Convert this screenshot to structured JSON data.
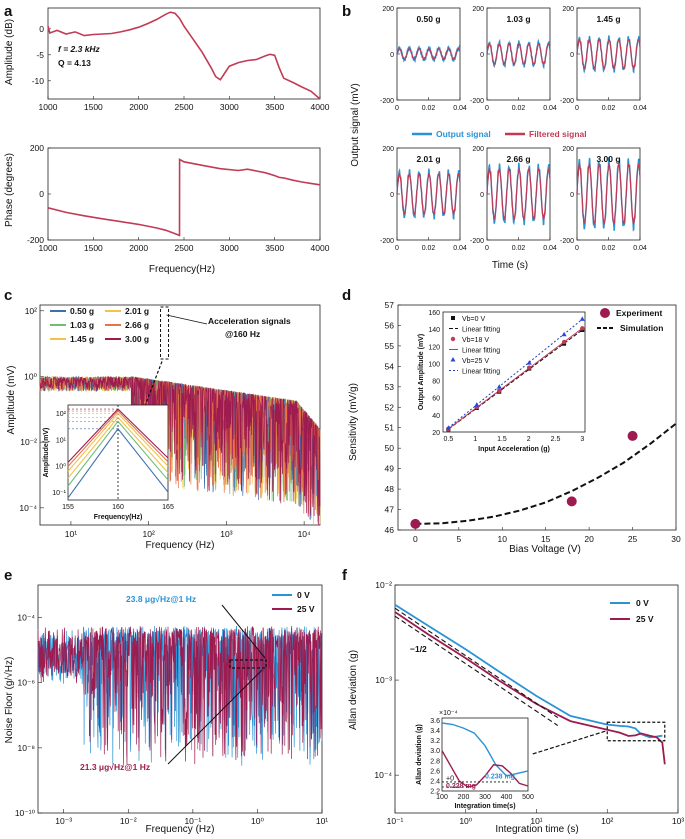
{
  "colors": {
    "red": "#c23b55",
    "blue": "#2a93d5",
    "darkred": "#9e1b4f",
    "green": "#6fbf73",
    "yellow": "#f2c14e",
    "orange": "#e8734a",
    "steel": "#3f6fb0",
    "black": "#111111",
    "blue_fit": "#1f3fbf",
    "tri_blue": "#2b47e0"
  },
  "panel_a": {
    "label": "a",
    "annotation_f": "f = 2.3 kHz",
    "annotation_q": "Q = 4.13",
    "chart_data": [
      {
        "type": "line",
        "ylabel": "Amplitude (dB)",
        "xlim": [
          1000,
          4000
        ],
        "ylim": [
          -13.5,
          4
        ],
        "xticks": [
          "1000",
          "1500",
          "2000",
          "2500",
          "3000",
          "3500",
          "4000"
        ],
        "yticks": [
          "0",
          "-5",
          "-10"
        ],
        "x": [
          1000,
          1020,
          1100,
          1200,
          1300,
          1400,
          1500,
          1600,
          1700,
          1800,
          1900,
          2000,
          2100,
          2200,
          2300,
          2350,
          2400,
          2450,
          2500,
          2600,
          2700,
          2800,
          2850,
          2900,
          2950,
          3000,
          3100,
          3200,
          3300,
          3400,
          3450,
          3500,
          3550,
          3600,
          3700,
          3800,
          3900,
          4000
        ],
        "y": [
          0.5,
          -0.8,
          -0.3,
          -1.0,
          -0.6,
          -1.3,
          -1.1,
          -1.0,
          -0.9,
          -0.6,
          -0.2,
          0.3,
          1.0,
          1.8,
          2.8,
          3.2,
          3.0,
          2.0,
          0.5,
          -2.0,
          -4.5,
          -7.5,
          -9.2,
          -9.8,
          -8.5,
          -7.2,
          -6.5,
          -6.1,
          -5.9,
          -5.2,
          -4.9,
          -5.1,
          -7.5,
          -9.5,
          -10.3,
          -11.2,
          -12.0,
          -13.5
        ]
      },
      {
        "type": "line",
        "xlabel": "Frequency(Hz)",
        "ylabel": "Phase (degrees)",
        "xlim": [
          1000,
          4000
        ],
        "ylim": [
          -200,
          200
        ],
        "xticks": [
          "1000",
          "1500",
          "2000",
          "2500",
          "3000",
          "3500",
          "4000"
        ],
        "yticks": [
          "200",
          "0",
          "-200"
        ],
        "x": [
          1000,
          1200,
          1400,
          1600,
          1800,
          2000,
          2200,
          2300,
          2400,
          2450,
          2451,
          2500,
          2700,
          2900,
          3100,
          3200,
          3300,
          3400,
          3500,
          3550,
          3600,
          3700,
          3800,
          3900,
          4000
        ],
        "y": [
          -60,
          -80,
          -95,
          -108,
          -120,
          -132,
          -148,
          -158,
          -172,
          -180,
          150,
          140,
          125,
          110,
          102,
          108,
          100,
          92,
          80,
          72,
          70,
          60,
          52,
          46,
          40
        ]
      }
    ]
  },
  "panel_b": {
    "label": "b",
    "ylabel": "Output signal (mV)",
    "xlabel": "Time (s)",
    "legend": [
      "Output signal",
      "Filtered signal"
    ],
    "chart_data": {
      "type": "line",
      "xlim": [
        0,
        0.04
      ],
      "ylim": [
        -200,
        200
      ],
      "xticks": [
        "0",
        "0.02",
        "0.04"
      ],
      "yticks": [
        "200",
        "0",
        "-200"
      ],
      "frequency_hz": 160,
      "panels": [
        {
          "title": "0.50 g",
          "amplitude": 25
        },
        {
          "title": "1.03 g",
          "amplitude": 48
        },
        {
          "title": "1.45 g",
          "amplitude": 68
        },
        {
          "title": "2.01 g",
          "amplitude": 95
        },
        {
          "title": "2.66 g",
          "amplitude": 118
        },
        {
          "title": "3.00 g",
          "amplitude": 140
        }
      ]
    }
  },
  "panel_c": {
    "label": "c",
    "ylabel": "Amplitude (mV)",
    "xlabel": "Frequency (Hz)",
    "annotation": [
      "Acceleration signals",
      "@160 Hz"
    ],
    "legend": [
      "0.50 g",
      "1.03 g",
      "1.45 g",
      "2.01 g",
      "2.66 g",
      "3.00 g"
    ],
    "inset": {
      "xlabel": "Frequency(Hz)",
      "ylabel": "Amplitude(mV)",
      "xticks": [
        "155",
        "160",
        "165"
      ],
      "yticks": [
        "10²",
        "10¹",
        "10⁰",
        "10⁻¹"
      ],
      "peaks": [
        25,
        48,
        68,
        95,
        118,
        140
      ]
    },
    "chart_data": {
      "type": "line",
      "xscale": "log",
      "yscale": "log",
      "xlim": [
        4,
        16000
      ],
      "ylim": [
        3e-05,
        150
      ],
      "xticks": [
        "10¹",
        "10²",
        "10³",
        "10⁴"
      ],
      "yticks": [
        "10²",
        "10⁰",
        "10⁻²",
        "10⁻⁴"
      ],
      "noise_floor_mV": 1.0,
      "peak_frequency_hz": 160
    }
  },
  "panel_d": {
    "label": "d",
    "ylabel": "Sensitivity (mV/g)",
    "xlabel": "Bias Voltage (V)",
    "legend": [
      "Experiment",
      "Simulation"
    ],
    "chart_data": {
      "type": "scatter",
      "xlim": [
        -2,
        30
      ],
      "ylim": [
        46,
        57
      ],
      "xticks": [
        "0",
        "5",
        "10",
        "15",
        "20",
        "25",
        "30"
      ],
      "yticks": [
        "46",
        "47",
        "48",
        "49",
        "50",
        "51",
        "52",
        "53",
        "54",
        "55",
        "56",
        "57"
      ],
      "experiment": {
        "x": [
          0,
          18,
          25
        ],
        "y": [
          46.3,
          47.4,
          50.6
        ]
      },
      "simulation": {
        "x": [
          0,
          3,
          6,
          9,
          12,
          15,
          18,
          21,
          24,
          27,
          30
        ],
        "y": [
          46.3,
          46.33,
          46.45,
          46.65,
          46.95,
          47.35,
          47.9,
          48.55,
          49.3,
          50.2,
          51.2
        ]
      }
    },
    "inset": {
      "xlabel": "Input Acceleration (g)",
      "ylabel": "Output Amplitude (mV)",
      "legend": [
        "Vb=0 V",
        "Linear fitting",
        "Vb=18 V",
        "Linear fitting",
        "Vb=25 V",
        "Linear fitting"
      ],
      "xlim": [
        0.4,
        3.05
      ],
      "ylim": [
        20,
        160
      ],
      "xticks": [
        "0.5",
        "1",
        "1.5",
        "2",
        "2.5",
        "3"
      ],
      "yticks": [
        "160",
        "140",
        "120",
        "100",
        "80",
        "60",
        "40",
        "20"
      ],
      "x": [
        0.5,
        1.03,
        1.45,
        2.01,
        2.66,
        3.0
      ],
      "series": [
        {
          "name": "Vb=0 V",
          "values": [
            23,
            48,
            67,
            94,
            123,
            139
          ]
        },
        {
          "name": "Vb=18 V",
          "values": [
            23.5,
            49,
            68,
            95,
            125,
            141
          ]
        },
        {
          "name": "Vb=25 V",
          "values": [
            25,
            52,
            73,
            101,
            134,
            152
          ]
        }
      ]
    }
  },
  "panel_e": {
    "label": "e",
    "ylabel": "Noise Floor (g/√Hz)",
    "xlabel": "Frequency (Hz)",
    "legend": [
      "0 V",
      "25 V"
    ],
    "annotation_top": "23.8 μg√Hz@1 Hz",
    "annotation_bottom": "21.3 μg√Hz@1 Hz",
    "chart_data": {
      "type": "line",
      "xscale": "log",
      "yscale": "log",
      "xlim": [
        0.0004,
        10
      ],
      "ylim": [
        1e-10,
        0.001
      ],
      "xticks": [
        "10⁻³",
        "10⁻²",
        "10⁻¹",
        "10⁰",
        "10¹"
      ],
      "yticks": [
        "10⁻⁴",
        "10⁻⁶",
        "10⁻⁸",
        "10⁻¹⁰"
      ],
      "noise_at_1hz_ug": [
        23.8,
        21.3
      ]
    }
  },
  "panel_f": {
    "label": "f",
    "ylabel": "Allan deviation (g)",
    "xlabel": "Integration time (s)",
    "legend": [
      "0 V",
      "25 V"
    ],
    "slope_label": "−1/2",
    "chart_data": {
      "type": "line",
      "xscale": "log",
      "yscale": "log",
      "xlim": [
        0.1,
        1000
      ],
      "ylim": [
        4e-05,
        0.01
      ],
      "xticks": [
        "10⁻¹",
        "10⁰",
        "10¹",
        "10²",
        "10³"
      ],
      "yticks": [
        "10⁻²",
        "10⁻³",
        "10⁻⁴"
      ],
      "series": [
        {
          "name": "0 V",
          "x": [
            0.1,
            0.3,
            1,
            3,
            10,
            30,
            100,
            150,
            200,
            250,
            300,
            400,
            500,
            600
          ],
          "y": [
            0.0062,
            0.0037,
            0.0021,
            0.00122,
            0.00068,
            0.00042,
            0.00034,
            0.00033,
            0.000325,
            0.00031,
            0.00027,
            0.00025,
            0.000255,
            0.00026
          ]
        },
        {
          "name": "25 V",
          "x": [
            0.1,
            0.3,
            1,
            3,
            10,
            30,
            100,
            150,
            200,
            250,
            300,
            400,
            500,
            600,
            650
          ],
          "y": [
            0.0052,
            0.003,
            0.0017,
            0.00098,
            0.00056,
            0.00037,
            0.0003,
            0.00028,
            0.000258,
            0.000262,
            0.000275,
            0.00026,
            0.00025,
            0.00022,
            0.00013
          ]
        }
      ]
    },
    "inset": {
      "exponent": "×10⁻⁴",
      "ylabel": "Allan deviation (g)",
      "xlabel": "Integration time(s)",
      "xticks": [
        "100",
        "200",
        "300",
        "400",
        "500"
      ],
      "yticks": [
        "3.6",
        "3.4",
        "3.2",
        "3.0",
        "2.8",
        "2.6",
        "2.4",
        "2.2"
      ],
      "annotation_red": "0.228 mg",
      "annotation_blue": "0.238 mg",
      "annotation_0": "+0"
    }
  }
}
